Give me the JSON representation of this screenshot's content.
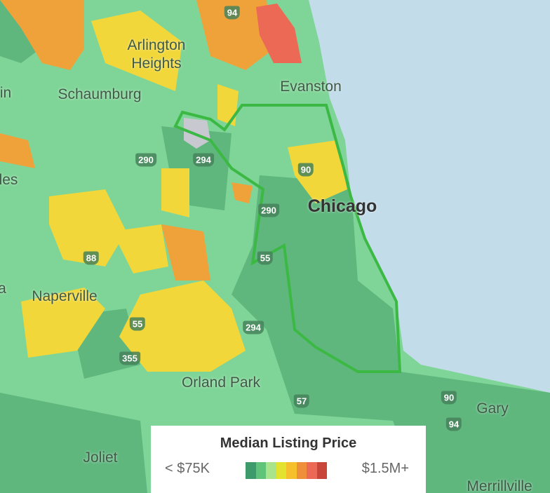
{
  "places": [
    "Arlington Heights",
    "Schaumburg",
    "Evanston",
    "Chicago",
    "Naperville",
    "Orland Park",
    "Gary",
    "Joliet",
    "Merrillville",
    "in",
    "les",
    "a"
  ],
  "highways": [
    "94",
    "290",
    "294",
    "90",
    "290",
    "88",
    "55",
    "55",
    "294",
    "355",
    "57",
    "90",
    "94"
  ],
  "legend": {
    "title": "Median Listing Price",
    "min_label": "< $75K",
    "max_label": "$1.5M+",
    "colors": [
      "#3d9a6a",
      "#5fc47a",
      "#a9e38a",
      "#e2e22f",
      "#f6c02d",
      "#f08f3a",
      "#ec6a55",
      "#c8453a"
    ]
  }
}
